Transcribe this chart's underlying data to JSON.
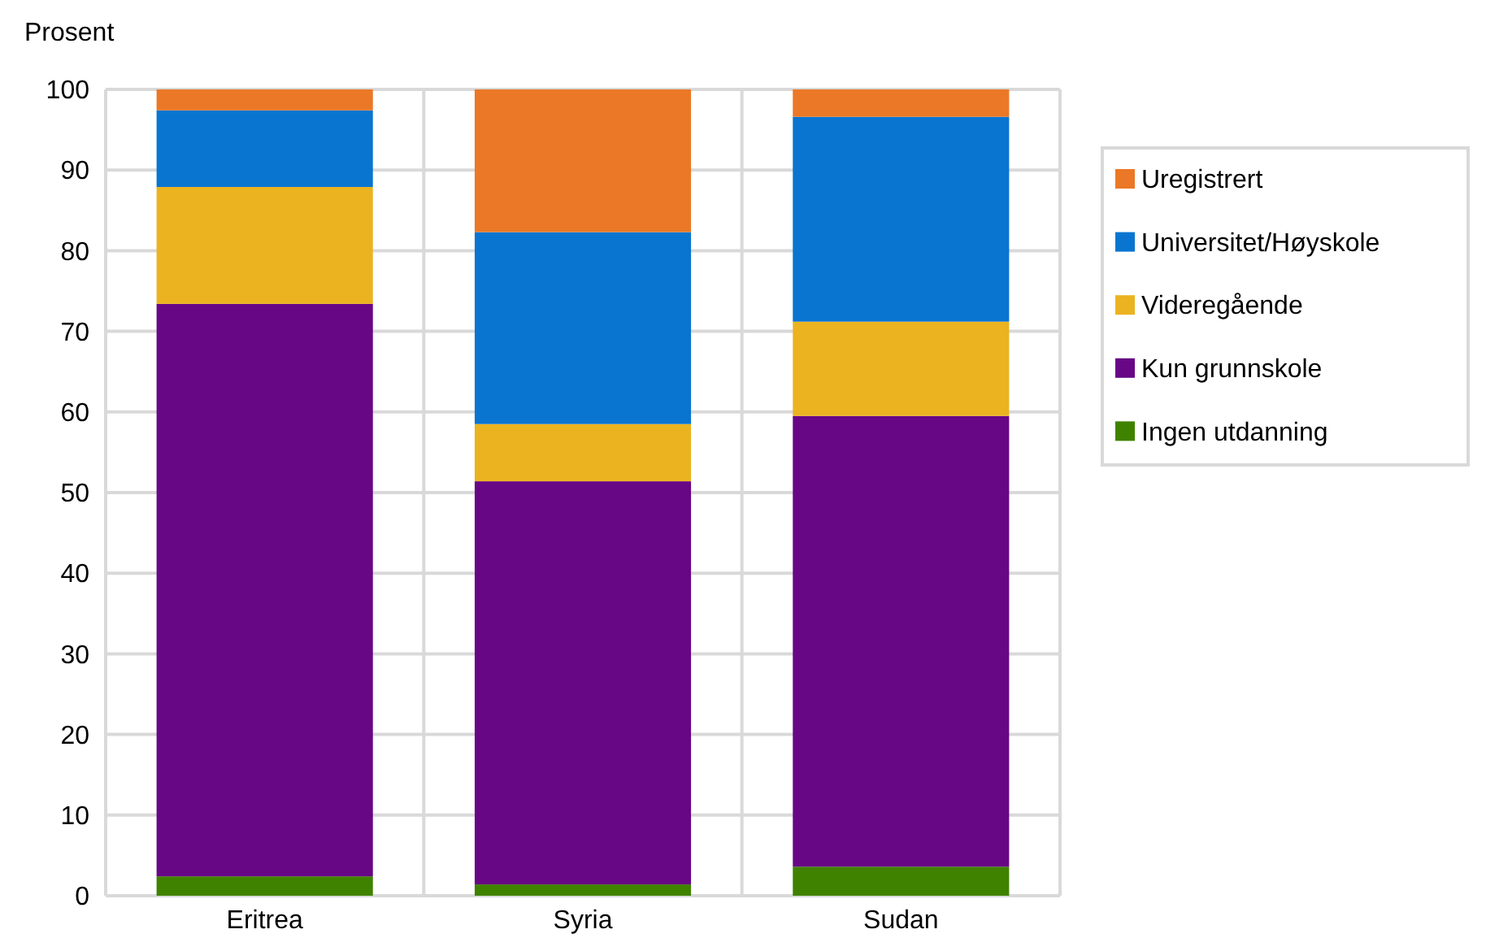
{
  "chart_data": {
    "type": "bar",
    "stacked": true,
    "ylabel": "Prosent",
    "categories": [
      "Eritrea",
      "Syria",
      "Sudan"
    ],
    "series": [
      {
        "name": "Ingen utdanning",
        "color": "#3f8200",
        "values": [
          2.4,
          1.4,
          3.6
        ]
      },
      {
        "name": "Kun grunnskole",
        "color": "#680785",
        "values": [
          71.0,
          50.0,
          55.9
        ]
      },
      {
        "name": "Videregående",
        "color": "#ebb320",
        "values": [
          14.5,
          7.1,
          11.7
        ]
      },
      {
        "name": "Universitet/Høyskole",
        "color": "#0a75d0",
        "values": [
          9.5,
          23.8,
          25.4
        ]
      },
      {
        "name": "Uregistrert",
        "color": "#eb7826",
        "values": [
          2.6,
          17.7,
          3.4
        ]
      }
    ],
    "ylim": [
      0,
      100
    ],
    "yticks": [
      0,
      10,
      20,
      30,
      40,
      50,
      60,
      70,
      80,
      90,
      100
    ],
    "grid": true,
    "legend": "right"
  }
}
